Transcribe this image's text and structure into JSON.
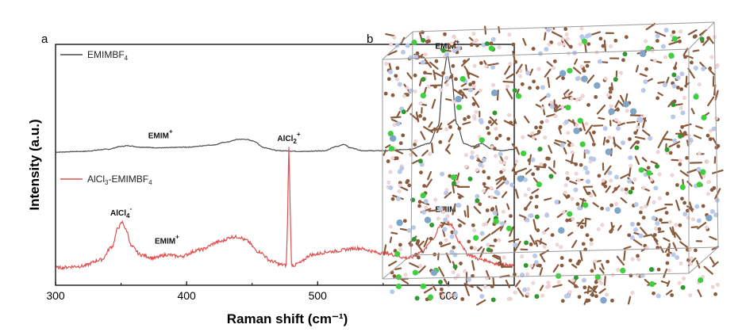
{
  "panels": {
    "a": "a",
    "b": "b"
  },
  "chart_data": {
    "type": "line",
    "xlabel": "Raman shift (cm⁻¹)",
    "ylabel": "Intensity (a.u.)",
    "xlim": [
      300,
      650
    ],
    "xticks": [
      300,
      400,
      500,
      600
    ],
    "y_ticks_shown": false,
    "grid": false,
    "legend_placement": "inline above each trace",
    "series": [
      {
        "name": "EMIMBF4",
        "color": "#4a4a4a",
        "x": [
          300,
          320,
          340,
          350,
          355,
          365,
          380,
          400,
          420,
          430,
          440,
          445,
          450,
          460,
          470,
          490,
          505,
          515,
          520,
          525,
          535,
          550,
          570,
          585,
          592,
          596,
          599,
          602,
          606,
          612,
          618,
          625,
          632,
          640,
          650
        ],
        "y": [
          0.0,
          0.5,
          2,
          4,
          4.5,
          3.5,
          3,
          3.5,
          5,
          7,
          9,
          9,
          8,
          3,
          1,
          0.5,
          1,
          4,
          5.5,
          3,
          1,
          1,
          2,
          6,
          18,
          55,
          68,
          55,
          20,
          6,
          4,
          6,
          2.5,
          1,
          2
        ]
      },
      {
        "name": "AlCl3-EMIMBF4",
        "color": "#e05050",
        "x": [
          300,
          320,
          335,
          343,
          348,
          351,
          354,
          358,
          365,
          375,
          385,
          395,
          410,
          425,
          435,
          440,
          445,
          455,
          465,
          472,
          476,
          477,
          478,
          479,
          480,
          482,
          486,
          495,
          510,
          530,
          550,
          570,
          580,
          588,
          594,
          598,
          602,
          608,
          615,
          625,
          640,
          650
        ],
        "y": [
          1,
          2,
          6,
          14,
          26,
          29,
          24,
          14,
          9,
          7,
          9,
          8,
          12,
          17,
          20,
          20,
          18,
          11,
          5,
          3,
          2.5,
          28,
          76,
          40,
          3,
          2.5,
          4,
          9,
          11,
          13,
          10,
          7,
          11,
          19,
          27,
          30,
          27,
          17,
          9,
          6,
          3,
          2
        ]
      }
    ],
    "annotations": [
      {
        "series": "EMIMBF4",
        "x": 599,
        "text": "EMIM",
        "sup": "+"
      },
      {
        "series": "EMIMBF4",
        "x": 380,
        "text": "EMIM",
        "sup": "+"
      },
      {
        "series": "AlCl3-EMIMBF4",
        "x": 478,
        "text": "AlCl",
        "sub": "2",
        "sup": "+"
      },
      {
        "series": "AlCl3-EMIMBF4",
        "x": 350,
        "text": "AlCl",
        "sub": "4",
        "sup": "-"
      },
      {
        "series": "AlCl3-EMIMBF4",
        "x": 385,
        "text": "EMIM",
        "sup": "+"
      },
      {
        "series": "AlCl3-EMIMBF4",
        "x": 599,
        "text": "EMIM",
        "sup": "+"
      }
    ],
    "legend": [
      {
        "series": "EMIMBF4",
        "text": "EMIMBF",
        "sub": "4"
      },
      {
        "series": "AlCl3-EMIMBF4",
        "text": "AlCl",
        "sub": "3",
        "text2": "-EMIMBF",
        "sub2": "4"
      }
    ]
  },
  "molecular_box": {
    "atom_colors": {
      "carbon": "#8b5a3c",
      "hydrogen": "#f2d6d6",
      "nitrogen": "#b8c8e8",
      "boron": "#2e9a2e",
      "chlorine": "#3cd03c",
      "aluminum": "#7fa6c8"
    }
  }
}
